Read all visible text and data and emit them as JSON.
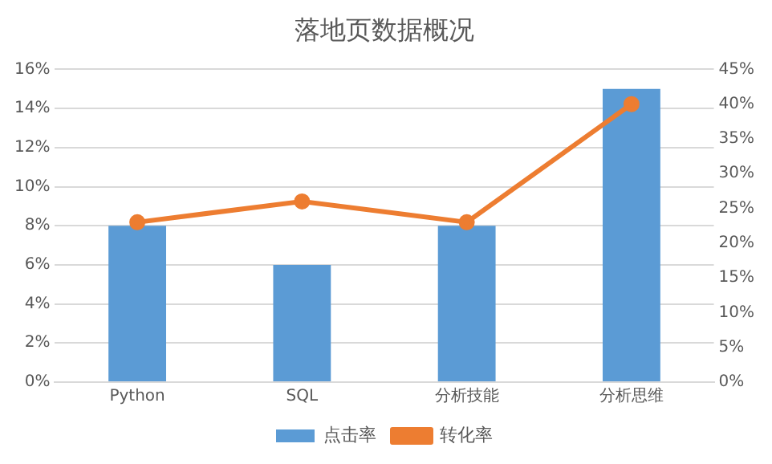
{
  "chart_data": {
    "type": "bar",
    "title": "落地页数据概况",
    "categories": [
      "Python",
      "SQL",
      "分析技能",
      "分析思维"
    ],
    "series": [
      {
        "name": "点击率",
        "color": "#5b9bd5",
        "values": [
          8,
          6,
          8,
          15
        ]
      },
      {
        "name": "转化率",
        "type": "line",
        "axis": "y2",
        "color": "#ed7d31",
        "values": [
          23,
          26,
          23,
          40
        ],
        "marker": "circle",
        "line_style": "solid"
      }
    ],
    "ylim": [
      0,
      16
    ],
    "yticks": [
      {
        "value": 0,
        "label": "0%"
      },
      {
        "value": 2,
        "label": "2%"
      },
      {
        "value": 4,
        "label": "4%"
      },
      {
        "value": 6,
        "label": "6%"
      },
      {
        "value": 8,
        "label": "8%"
      },
      {
        "value": 10,
        "label": "10%"
      },
      {
        "value": 12,
        "label": "12%"
      },
      {
        "value": 14,
        "label": "14%"
      },
      {
        "value": 16,
        "label": "16%"
      }
    ],
    "y2lim": [
      0,
      45
    ],
    "y2ticks": [
      {
        "value": 0,
        "label": "0%"
      },
      {
        "value": 5,
        "label": "5%"
      },
      {
        "value": 10,
        "label": "10%"
      },
      {
        "value": 15,
        "label": "15%"
      },
      {
        "value": 20,
        "label": "20%"
      },
      {
        "value": 25,
        "label": "25%"
      },
      {
        "value": 30,
        "label": "30%"
      },
      {
        "value": 35,
        "label": "35%"
      },
      {
        "value": 40,
        "label": "40%"
      },
      {
        "value": 45,
        "label": "45%"
      }
    ],
    "grid": "y",
    "legend": "bottom"
  }
}
